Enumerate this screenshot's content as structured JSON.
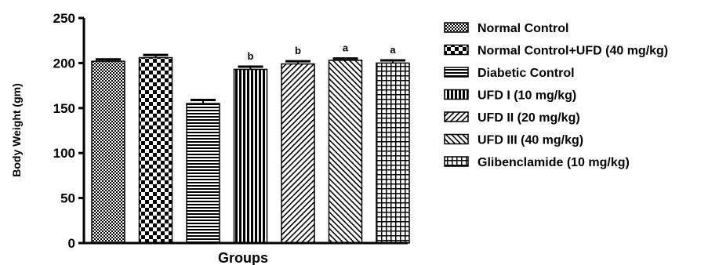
{
  "chart_data": {
    "type": "bar",
    "ylabel": "Body Weight (gm)",
    "xlabel": "Groups",
    "ylim": [
      0,
      250
    ],
    "yticks": [
      0,
      50,
      100,
      150,
      200,
      250
    ],
    "legend_position": "right",
    "categories": [
      "Normal Control",
      "Normal Control+UFD (40 mg/kg)",
      "Diabetic Control",
      "UFD I (10 mg/kg)",
      "UFD II (20 mg/kg)",
      "UFD III (40 mg/kg)",
      "Glibenclamide (10 mg/kg)"
    ],
    "values": [
      202,
      206,
      155,
      193,
      199,
      203,
      200
    ],
    "errors": [
      2,
      3,
      4,
      3,
      3,
      2,
      3
    ],
    "annotations": [
      "",
      "",
      "",
      "b",
      "b",
      "a",
      "a"
    ],
    "patterns": [
      "fine-check",
      "checker",
      "horizontal",
      "vertical",
      "diagonal-right",
      "diagonal-left",
      "grid"
    ]
  }
}
